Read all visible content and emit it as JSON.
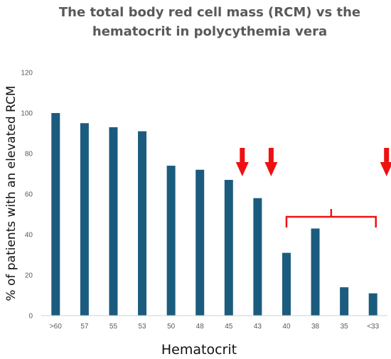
{
  "chart_data": {
    "type": "bar",
    "title": "The total body red cell mass (RCM) vs the hematocrit in polycythemia vera",
    "xlabel": "Hematocrit",
    "ylabel": "% of patients with an elevated RCM",
    "categories": [
      ">60",
      "57",
      "55",
      "53",
      "50",
      "48",
      "45",
      "43",
      "40",
      "38",
      "35",
      "<33"
    ],
    "values": [
      100,
      95,
      93,
      91,
      74,
      72,
      67,
      58,
      31,
      43,
      14,
      11
    ],
    "ylim": [
      0,
      120
    ],
    "yticks": [
      0,
      20,
      40,
      60,
      80,
      100,
      120
    ],
    "grid": false,
    "legend": "none",
    "colors": {
      "bar": "#1b5c7e",
      "arrow": "#ee1111",
      "axis": "#d0d0d0",
      "text": "#595959"
    },
    "annotations": {
      "arrows_at_categories": [
        "45",
        "43",
        "<33"
      ],
      "bracket_from": "40",
      "bracket_to": "<33"
    }
  }
}
